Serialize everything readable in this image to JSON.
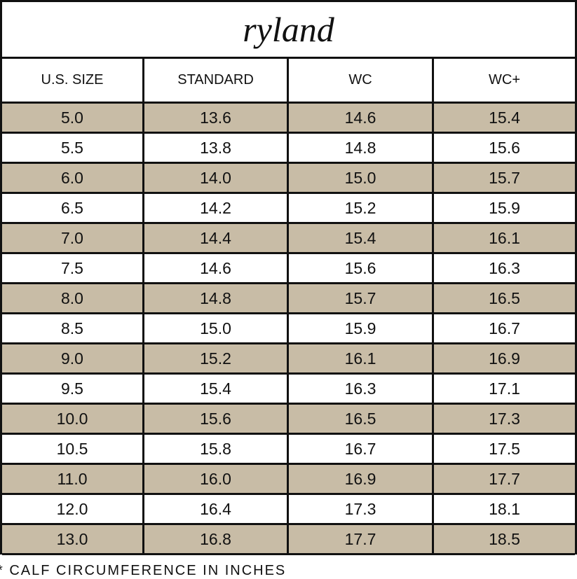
{
  "header": {
    "title": "ryland"
  },
  "table": {
    "columns": [
      "U.S. SIZE",
      "STANDARD",
      "WC",
      "WC+"
    ],
    "rows": [
      [
        "5.0",
        "13.6",
        "14.6",
        "15.4"
      ],
      [
        "5.5",
        "13.8",
        "14.8",
        "15.6"
      ],
      [
        "6.0",
        "14.0",
        "15.0",
        "15.7"
      ],
      [
        "6.5",
        "14.2",
        "15.2",
        "15.9"
      ],
      [
        "7.0",
        "14.4",
        "15.4",
        "16.1"
      ],
      [
        "7.5",
        "14.6",
        "15.6",
        "16.3"
      ],
      [
        "8.0",
        "14.8",
        "15.7",
        "16.5"
      ],
      [
        "8.5",
        "15.0",
        "15.9",
        "16.7"
      ],
      [
        "9.0",
        "15.2",
        "16.1",
        "16.9"
      ],
      [
        "9.5",
        "15.4",
        "16.3",
        "17.1"
      ],
      [
        "10.0",
        "15.6",
        "16.5",
        "17.3"
      ],
      [
        "10.5",
        "15.8",
        "16.7",
        "17.5"
      ],
      [
        "11.0",
        "16.0",
        "16.9",
        "17.7"
      ],
      [
        "12.0",
        "16.4",
        "17.3",
        "18.1"
      ],
      [
        "13.0",
        "16.8",
        "17.7",
        "18.5"
      ]
    ]
  },
  "footer": {
    "note": "* CALF CIRCUMFERENCE IN INCHES"
  }
}
